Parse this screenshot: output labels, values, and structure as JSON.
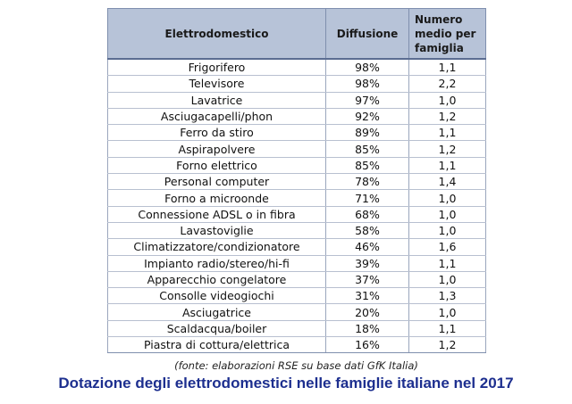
{
  "table": {
    "headers": [
      "Elettrodomestico",
      "Diffusione",
      "Numero medio per famiglia"
    ],
    "rows": [
      [
        "Frigorifero",
        "98%",
        "1,1"
      ],
      [
        "Televisore",
        "98%",
        "2,2"
      ],
      [
        "Lavatrice",
        "97%",
        "1,0"
      ],
      [
        "Asciugacapelli/phon",
        "92%",
        "1,2"
      ],
      [
        "Ferro da stiro",
        "89%",
        "1,1"
      ],
      [
        "Aspirapolvere",
        "85%",
        "1,2"
      ],
      [
        "Forno elettrico",
        "85%",
        "1,1"
      ],
      [
        "Personal computer",
        "78%",
        "1,4"
      ],
      [
        "Forno a microonde",
        "71%",
        "1,0"
      ],
      [
        "Connessione ADSL o in fibra",
        "68%",
        "1,0"
      ],
      [
        "Lavastoviglie",
        "58%",
        "1,0"
      ],
      [
        "Climatizzatore/condizionatore",
        "46%",
        "1,6"
      ],
      [
        "Impianto radio/stereo/hi-fi",
        "39%",
        "1,1"
      ],
      [
        "Apparecchio congelatore",
        "37%",
        "1,0"
      ],
      [
        "Consolle videogiochi",
        "31%",
        "1,3"
      ],
      [
        "Asciugatrice",
        "20%",
        "1,0"
      ],
      [
        "Scaldacqua/boiler",
        "18%",
        "1,1"
      ],
      [
        "Piastra di cottura/elettrica",
        "16%",
        "1,2"
      ]
    ]
  },
  "source_note": "(fonte: elaborazioni RSE su base dati GfK Italia)",
  "caption": "Dotazione degli elettrodomestici nelle famiglie italiane nel 2017",
  "colors": {
    "header_bg": "#b7c3d8",
    "caption": "#1d2f8f"
  }
}
